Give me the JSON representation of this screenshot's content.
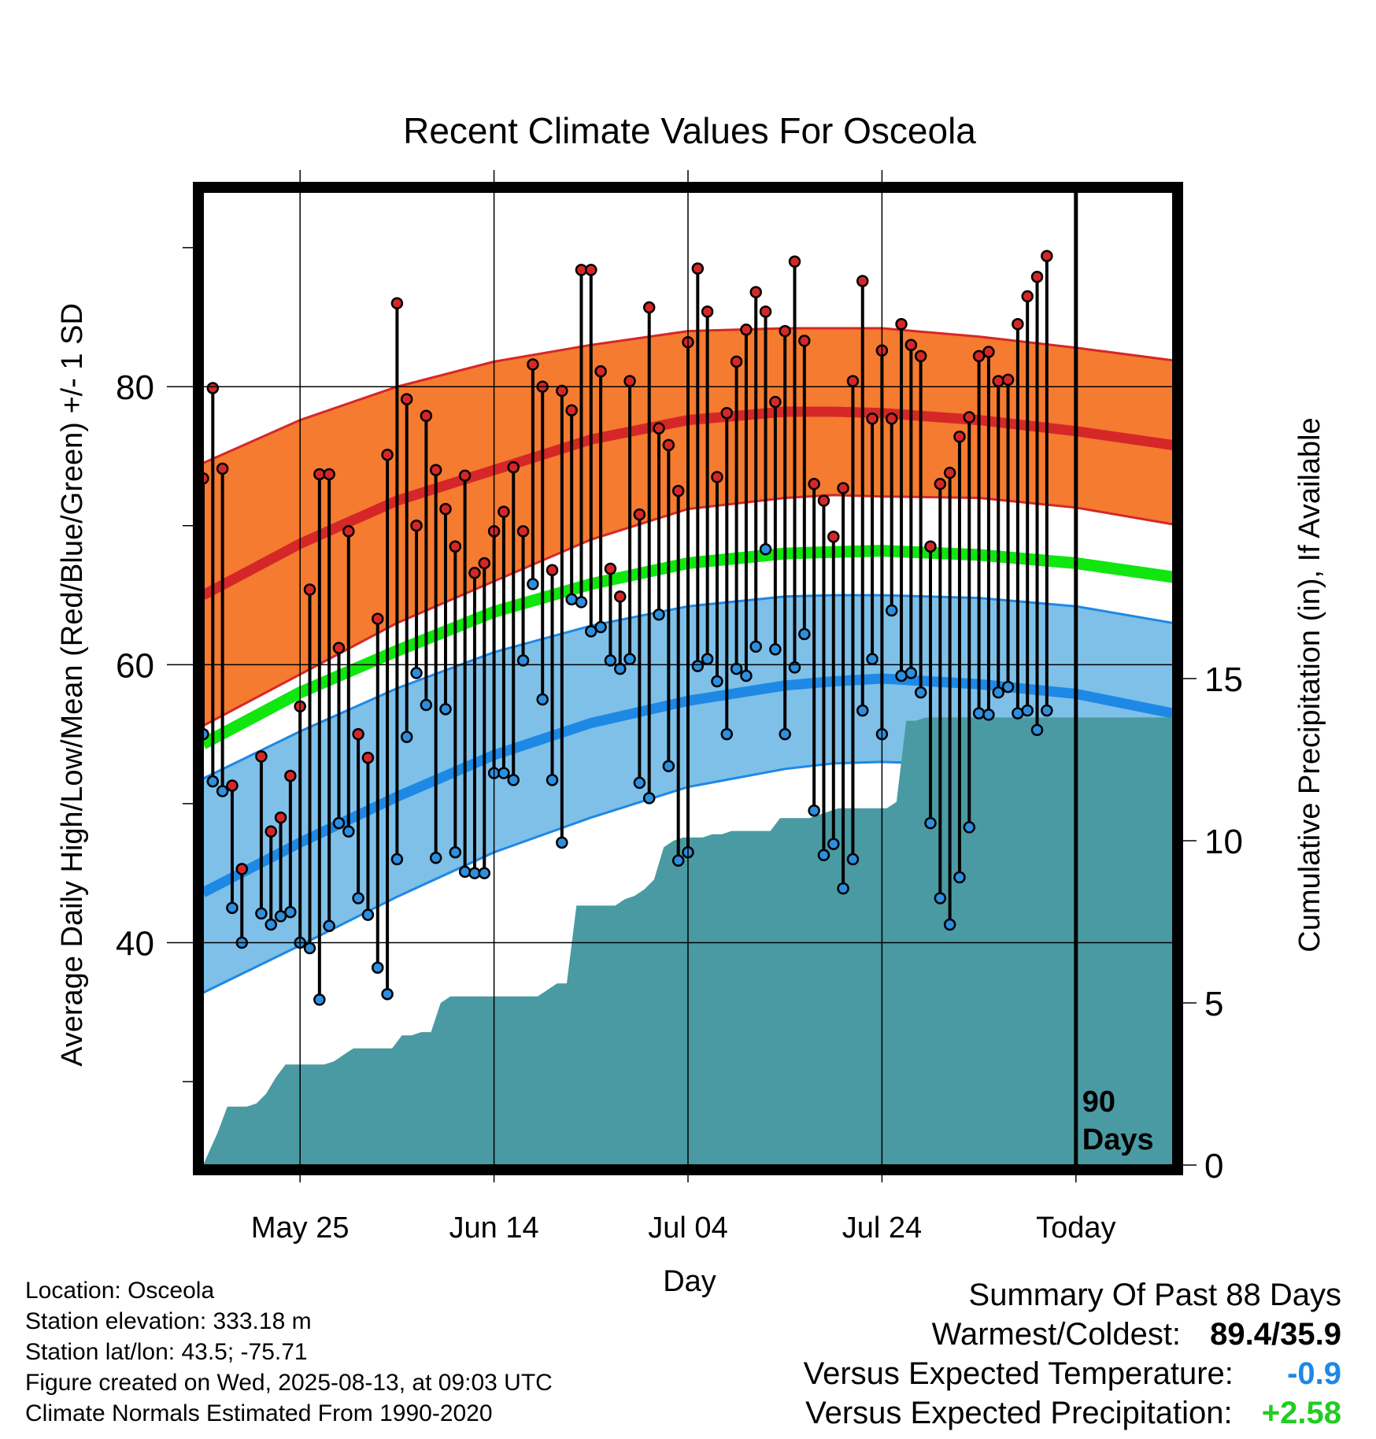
{
  "chart_data": {
    "type": "line",
    "title": "Recent Climate Values For Osceola",
    "xlabel": "Day",
    "ylabel_left": "Average Daily High/Low/Mean (Red/Blue/Green) +/- 1 SD",
    "ylabel_right": "Cumulative Precipitation (in), If Available",
    "x_range_days": [
      -90,
      10
    ],
    "x_unit": "days relative to today (2025-08-13)",
    "y_left_range": [
      24,
      94
    ],
    "y_right_range": [
      0,
      30
    ],
    "grid": true,
    "x_ticks": [
      {
        "day": -80,
        "label": "May 25"
      },
      {
        "day": -60,
        "label": "Jun 14"
      },
      {
        "day": -40,
        "label": "Jul 04"
      },
      {
        "day": -20,
        "label": "Jul 24"
      },
      {
        "day": 0,
        "label": "Today"
      }
    ],
    "y_left_major_ticks": [
      {
        "value": 40,
        "label": "40"
      },
      {
        "value": 60,
        "label": "60"
      },
      {
        "value": 80,
        "label": "80"
      }
    ],
    "y_left_minor_ticks": [
      30,
      50,
      70,
      90
    ],
    "y_right_ticks": [
      {
        "value": 0,
        "label": "0"
      },
      {
        "value": 5,
        "label": "5"
      },
      {
        "value": 10,
        "label": "10"
      },
      {
        "value": 15,
        "label": "15"
      }
    ],
    "period_label": [
      "90",
      "Days"
    ],
    "normals": {
      "days": [
        -90,
        -80,
        -70,
        -60,
        -50,
        -40,
        -30,
        -25,
        -20,
        -10,
        0,
        10
      ],
      "high_mean": [
        65.0,
        68.7,
        71.8,
        74.0,
        76.2,
        77.6,
        78.2,
        78.2,
        78.1,
        77.6,
        76.8,
        75.8
      ],
      "high_upper": [
        74.5,
        77.6,
        80.0,
        81.8,
        83.0,
        84.0,
        84.2,
        84.2,
        84.2,
        83.6,
        82.8,
        81.9
      ],
      "high_lower": [
        55.6,
        59.3,
        63.0,
        66.0,
        69.0,
        71.2,
        72.0,
        72.2,
        72.1,
        72.0,
        71.3,
        70.1
      ],
      "mean": [
        54.3,
        58.0,
        61.0,
        63.8,
        65.8,
        67.3,
        68.0,
        68.1,
        68.2,
        67.9,
        67.3,
        66.3
      ],
      "low_mean": [
        43.6,
        47.2,
        50.5,
        53.5,
        55.8,
        57.4,
        58.5,
        58.8,
        59.0,
        58.6,
        57.9,
        56.5
      ],
      "low_upper": [
        51.8,
        55.2,
        58.3,
        60.9,
        62.8,
        64.2,
        64.9,
        65.0,
        65.0,
        64.8,
        64.2,
        63.0
      ],
      "low_lower": [
        36.4,
        39.8,
        43.3,
        46.5,
        49.0,
        51.2,
        52.5,
        52.9,
        53.0,
        52.8,
        51.9,
        50.3
      ]
    },
    "series": [
      {
        "name": "High",
        "color": "#d62728",
        "days": [
          -90,
          -89,
          -88,
          -87,
          -86,
          -85,
          -84,
          -83,
          -82,
          -81,
          -80,
          -79,
          -78,
          -77,
          -76,
          -75,
          -74,
          -73,
          -72,
          -71,
          -70,
          -69,
          -68,
          -67,
          -66,
          -65,
          -64,
          -63,
          -62,
          -61,
          -60,
          -59,
          -58,
          -57,
          -56,
          -55,
          -54,
          -53,
          -52,
          -51,
          -50,
          -49,
          -48,
          -47,
          -46,
          -45,
          -44,
          -43,
          -42,
          -41,
          -40,
          -39,
          -38,
          -37,
          -36,
          -35,
          -34,
          -33,
          -32,
          -31,
          -30,
          -29,
          -28,
          -27,
          -26,
          -25,
          -24,
          -23,
          -22,
          -21,
          -20,
          -19,
          -18,
          -17,
          -16,
          -15,
          -14,
          -13,
          -12,
          -11,
          -10,
          -9,
          -8,
          -7,
          -6,
          -5,
          -4,
          -3,
          -2,
          -1
        ],
        "values": [
          73.4,
          79.9,
          74.1,
          51.3,
          45.3,
          null,
          53.4,
          48.0,
          49.0,
          52.0,
          57.0,
          65.4,
          73.7,
          73.7,
          61.2,
          69.6,
          55.0,
          53.3,
          63.3,
          75.1,
          86.0,
          79.1,
          70.0,
          77.9,
          74.0,
          71.2,
          68.5,
          73.6,
          66.6,
          67.3,
          69.6,
          71.0,
          74.2,
          69.6,
          81.6,
          80.0,
          66.8,
          79.7,
          78.3,
          88.4,
          88.4,
          81.1,
          66.9,
          64.9,
          80.4,
          70.8,
          85.7,
          77.0,
          75.8,
          72.5,
          83.2,
          88.5,
          85.4,
          73.5,
          78.1,
          81.8,
          84.1,
          86.8,
          85.4,
          78.9,
          84.0,
          89.0,
          83.3,
          73.0,
          71.8,
          69.2,
          72.7,
          80.4,
          87.6,
          77.7,
          82.6,
          77.7,
          84.5,
          83.0,
          82.2,
          68.5,
          73.0,
          73.8,
          76.4,
          77.8,
          82.2,
          82.5,
          80.4,
          80.5,
          84.5,
          86.5,
          87.9,
          89.4,
          null,
          null
        ]
      },
      {
        "name": "Low",
        "color": "#1f77d4",
        "days": [
          -90,
          -89,
          -88,
          -87,
          -86,
          -85,
          -84,
          -83,
          -82,
          -81,
          -80,
          -79,
          -78,
          -77,
          -76,
          -75,
          -74,
          -73,
          -72,
          -71,
          -70,
          -69,
          -68,
          -67,
          -66,
          -65,
          -64,
          -63,
          -62,
          -61,
          -60,
          -59,
          -58,
          -57,
          -56,
          -55,
          -54,
          -53,
          -52,
          -51,
          -50,
          -49,
          -48,
          -47,
          -46,
          -45,
          -44,
          -43,
          -42,
          -41,
          -40,
          -39,
          -38,
          -37,
          -36,
          -35,
          -34,
          -33,
          -32,
          -31,
          -30,
          -29,
          -28,
          -27,
          -26,
          -25,
          -24,
          -23,
          -22,
          -21,
          -20,
          -19,
          -18,
          -17,
          -16,
          -15,
          -14,
          -13,
          -12,
          -11,
          -10,
          -9,
          -8,
          -7,
          -6,
          -5,
          -4,
          -3,
          -2,
          -1
        ],
        "values": [
          55.0,
          51.6,
          50.9,
          42.5,
          40.0,
          null,
          42.1,
          41.3,
          41.9,
          42.2,
          40.0,
          39.6,
          35.9,
          41.2,
          48.6,
          48.0,
          43.2,
          42.0,
          38.2,
          36.3,
          46.0,
          54.8,
          59.4,
          57.1,
          46.1,
          56.8,
          46.5,
          45.1,
          45.0,
          45.0,
          52.2,
          52.2,
          51.7,
          60.3,
          65.8,
          57.5,
          51.7,
          47.2,
          64.7,
          64.5,
          62.4,
          62.7,
          60.3,
          59.7,
          60.4,
          51.5,
          50.4,
          63.6,
          52.7,
          45.9,
          46.5,
          59.9,
          60.4,
          58.8,
          55.0,
          59.7,
          59.2,
          61.3,
          68.3,
          61.1,
          55.0,
          59.8,
          62.2,
          49.5,
          46.3,
          47.1,
          43.9,
          46.0,
          56.7,
          60.4,
          55.0,
          63.9,
          59.2,
          59.4,
          58.0,
          48.6,
          43.2,
          41.3,
          44.7,
          48.3,
          56.5,
          56.4,
          58.0,
          58.4,
          56.5,
          56.7,
          55.3,
          56.7,
          null,
          null
        ]
      }
    ],
    "precip_cumulative": {
      "days": [
        -90,
        -88.5,
        -87.5,
        -85.5,
        -84.5,
        -83.5,
        -82.5,
        -81.5,
        -80.5,
        -79.5,
        -78.5,
        -77.5,
        -76.5,
        -75.5,
        -74.5,
        -73.5,
        -72.5,
        -71.5,
        -70.5,
        -69.5,
        -68.5,
        -67.5,
        -66.5,
        -65.5,
        -64.5,
        -63.5,
        -62.5,
        -61.5,
        -60.5,
        -59.5,
        -58.5,
        -57.5,
        -56.5,
        -55.5,
        -54.5,
        -53.5,
        -52.5,
        -51.5,
        -50.5,
        -49.5,
        -48.5,
        -47.5,
        -46.5,
        -45.5,
        -44.5,
        -43.5,
        -42.5,
        -41.5,
        -40.5,
        -39.5,
        -38.5,
        -37.5,
        -36.5,
        -35.5,
        -34.5,
        -33.5,
        -32.5,
        -31.5,
        -30.5,
        -29.5,
        -28.5,
        -27.5,
        -26.5,
        -25.5,
        -24.5,
        -23.5,
        -22.5,
        -21.5,
        -20.5,
        -19.5,
        -18.5,
        -17.5,
        -16.5,
        -15.5,
        -14.5,
        -13.5,
        -12.5,
        -11.5,
        -10.5,
        -9.5,
        -8.5,
        -7.5,
        -6.5,
        -5.5,
        -4.5,
        -3.5,
        -2.5,
        -1.5,
        -0.5,
        0,
        10
      ],
      "values": [
        0,
        1.0,
        1.8,
        1.8,
        1.9,
        2.2,
        2.7,
        3.1,
        3.1,
        3.1,
        3.1,
        3.1,
        3.2,
        3.4,
        3.6,
        3.6,
        3.6,
        3.6,
        3.6,
        4.0,
        4.0,
        4.1,
        4.1,
        5.0,
        5.2,
        5.2,
        5.2,
        5.2,
        5.2,
        5.2,
        5.2,
        5.2,
        5.2,
        5.2,
        5.4,
        5.6,
        5.6,
        8.0,
        8.0,
        8.0,
        8.0,
        8.0,
        8.2,
        8.3,
        8.5,
        8.8,
        9.8,
        10.0,
        10.1,
        10.1,
        10.1,
        10.2,
        10.2,
        10.3,
        10.3,
        10.3,
        10.3,
        10.3,
        10.7,
        10.7,
        10.7,
        10.7,
        10.8,
        10.9,
        11.0,
        11.0,
        11.0,
        11.0,
        11.0,
        11.0,
        11.2,
        13.7,
        13.7,
        13.8,
        13.8,
        13.8,
        13.8,
        13.8,
        13.8,
        13.8,
        13.8,
        13.8,
        13.8,
        13.8,
        13.8,
        13.8,
        13.8,
        13.8,
        13.8,
        13.8,
        13.8
      ]
    },
    "colors": {
      "high_band": "#f47b30",
      "high_edge": "#d62728",
      "high_mean": "#d62728",
      "mean_line": "#11e60f",
      "low_band": "#7fc0e8",
      "low_edge": "#1e88e5",
      "low_mean": "#1e88e5",
      "precip": "#4a9aa3",
      "high_dot": "#d62728",
      "low_dot": "#2d8fe0"
    }
  },
  "footer": {
    "lines": [
      "Location: Osceola",
      "Station elevation: 333.18 m",
      "Station lat/lon: 43.5; -75.71",
      "Figure created on Wed, 2025-08-13, at 09:03 UTC",
      "Climate Normals Estimated From 1990-2020"
    ]
  },
  "summary": {
    "title": "Summary Of Past 88 Days",
    "warmest_coldest_label": "Warmest/Coldest:",
    "warmest_coldest_value": "89.4/35.9",
    "temp_label": "Versus Expected Temperature:",
    "temp_value": "-0.9",
    "temp_color": "#1e88e5",
    "precip_label": "Versus Expected Precipitation:",
    "precip_value": "+2.58",
    "precip_color": "#22cc22"
  }
}
